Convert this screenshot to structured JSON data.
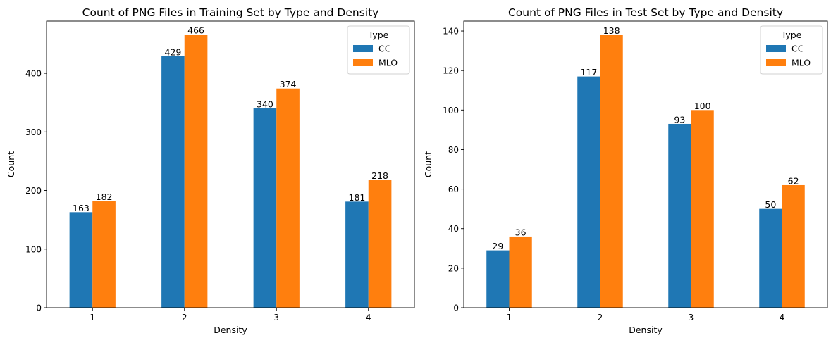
{
  "chart_data": [
    {
      "type": "bar",
      "title": "Count of PNG Files in Training Set by Type and Density",
      "xlabel": "Density",
      "ylabel": "Count",
      "categories": [
        "1",
        "2",
        "3",
        "4"
      ],
      "series": [
        {
          "name": "CC",
          "values": [
            163,
            429,
            340,
            181
          ],
          "color": "#1f77b4"
        },
        {
          "name": "MLO",
          "values": [
            182,
            466,
            374,
            218
          ],
          "color": "#ff7f0e"
        }
      ],
      "ylim": [
        0,
        489
      ],
      "yticks": [
        0,
        100,
        200,
        300,
        400
      ],
      "grid": false,
      "legend": {
        "title": "Type",
        "placement": "top-right"
      }
    },
    {
      "type": "bar",
      "title": "Count of PNG Files in Test Set by Type and Density",
      "xlabel": "Density",
      "ylabel": "Count",
      "categories": [
        "1",
        "2",
        "3",
        "4"
      ],
      "series": [
        {
          "name": "CC",
          "values": [
            29,
            117,
            93,
            50
          ],
          "color": "#1f77b4"
        },
        {
          "name": "MLO",
          "values": [
            36,
            138,
            100,
            62
          ],
          "color": "#ff7f0e"
        }
      ],
      "ylim": [
        0,
        145
      ],
      "yticks": [
        0,
        20,
        40,
        60,
        80,
        100,
        120,
        140
      ],
      "grid": false,
      "legend": {
        "title": "Type",
        "placement": "top-right"
      }
    }
  ]
}
